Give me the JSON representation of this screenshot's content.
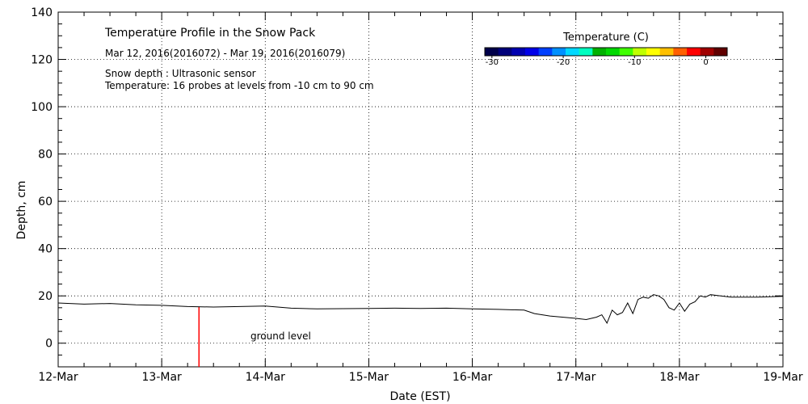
{
  "chart_data": {
    "type": "line",
    "title": "Temperature Profile in the Snow Pack",
    "subtitle": "Mar 12, 2016(2016072) - Mar 19, 2016(2016079)",
    "notes": [
      "Snow depth : Ultrasonic sensor",
      "Temperature: 16 probes at levels from -10 cm to 90 cm"
    ],
    "xlabel": "Date (EST)",
    "ylabel": "Depth, cm",
    "x_categories": [
      "12-Mar",
      "13-Mar",
      "14-Mar",
      "15-Mar",
      "16-Mar",
      "17-Mar",
      "18-Mar",
      "19-Mar"
    ],
    "ylim": [
      -10,
      140
    ],
    "yticks": [
      0,
      20,
      40,
      60,
      80,
      100,
      120,
      140
    ],
    "grid": true,
    "series": [
      {
        "x": [
          0.0,
          0.25,
          0.5,
          0.75,
          1.0,
          1.25,
          1.5,
          1.75,
          2.0,
          2.25,
          2.5,
          2.75,
          3.0,
          3.25,
          3.5,
          3.75,
          4.0,
          4.25,
          4.5,
          4.6,
          4.75,
          5.0,
          5.1,
          5.2,
          5.25,
          5.3,
          5.35,
          5.4,
          5.45,
          5.5,
          5.55,
          5.6,
          5.65,
          5.7,
          5.75,
          5.8,
          5.85,
          5.9,
          5.95,
          6.0,
          6.05,
          6.1,
          6.15,
          6.2,
          6.25,
          6.3,
          6.4,
          6.5,
          6.75,
          7.0
        ],
        "y": [
          17.0,
          16.5,
          16.8,
          16.2,
          16.0,
          15.5,
          15.3,
          15.5,
          15.7,
          14.8,
          14.5,
          14.6,
          14.7,
          14.8,
          14.7,
          14.8,
          14.5,
          14.3,
          14.0,
          12.5,
          11.5,
          10.5,
          10.0,
          11.0,
          12.0,
          8.5,
          14.0,
          12.0,
          13.0,
          17.0,
          12.5,
          18.5,
          19.5,
          19.0,
          20.5,
          20.0,
          18.5,
          15.0,
          14.0,
          17.0,
          13.5,
          16.5,
          17.5,
          20.0,
          19.5,
          20.5,
          20.0,
          19.5,
          19.5,
          19.8
        ],
        "color": "#000000"
      }
    ],
    "ground_level_label": "ground level",
    "marker_x": 1.36,
    "marker_color": "#ff0000",
    "colorbar": {
      "title": "Temperature (C)",
      "ticks": [
        -30,
        -20,
        -10,
        0
      ],
      "range": [
        -31,
        3
      ],
      "colors": [
        "#00004a",
        "#00007a",
        "#0000b0",
        "#0000e8",
        "#0040ff",
        "#0090ff",
        "#00d8ff",
        "#00ffc0",
        "#00b000",
        "#00d800",
        "#40ff00",
        "#c0ff00",
        "#ffff00",
        "#ffc000",
        "#ff6000",
        "#ff0000",
        "#a00000",
        "#600000"
      ]
    }
  }
}
